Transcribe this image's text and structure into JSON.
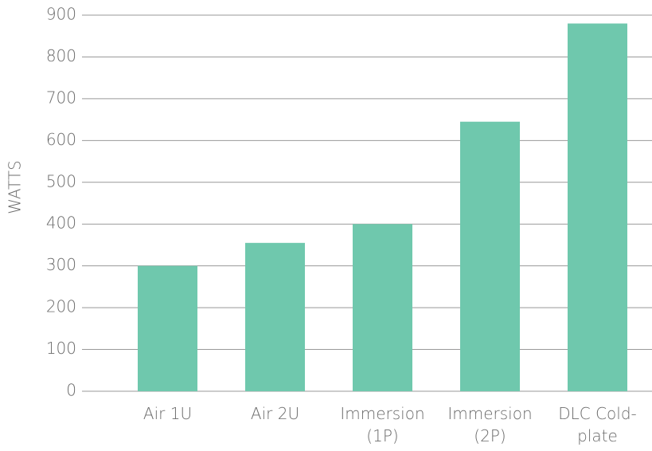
{
  "chart_data": {
    "type": "bar",
    "y_label": "WATTS",
    "categories": [
      "Air 1U",
      "Air 2U",
      "Immersion (1P)",
      "Immersion (2P)",
      "DLC Cold-plate"
    ],
    "values": [
      300,
      355,
      400,
      645,
      880
    ],
    "color": "#6fc8ad",
    "ylim": [
      0,
      900
    ],
    "yticks": [
      0,
      100,
      200,
      300,
      400,
      500,
      600,
      700,
      800,
      900
    ],
    "grid": true
  }
}
